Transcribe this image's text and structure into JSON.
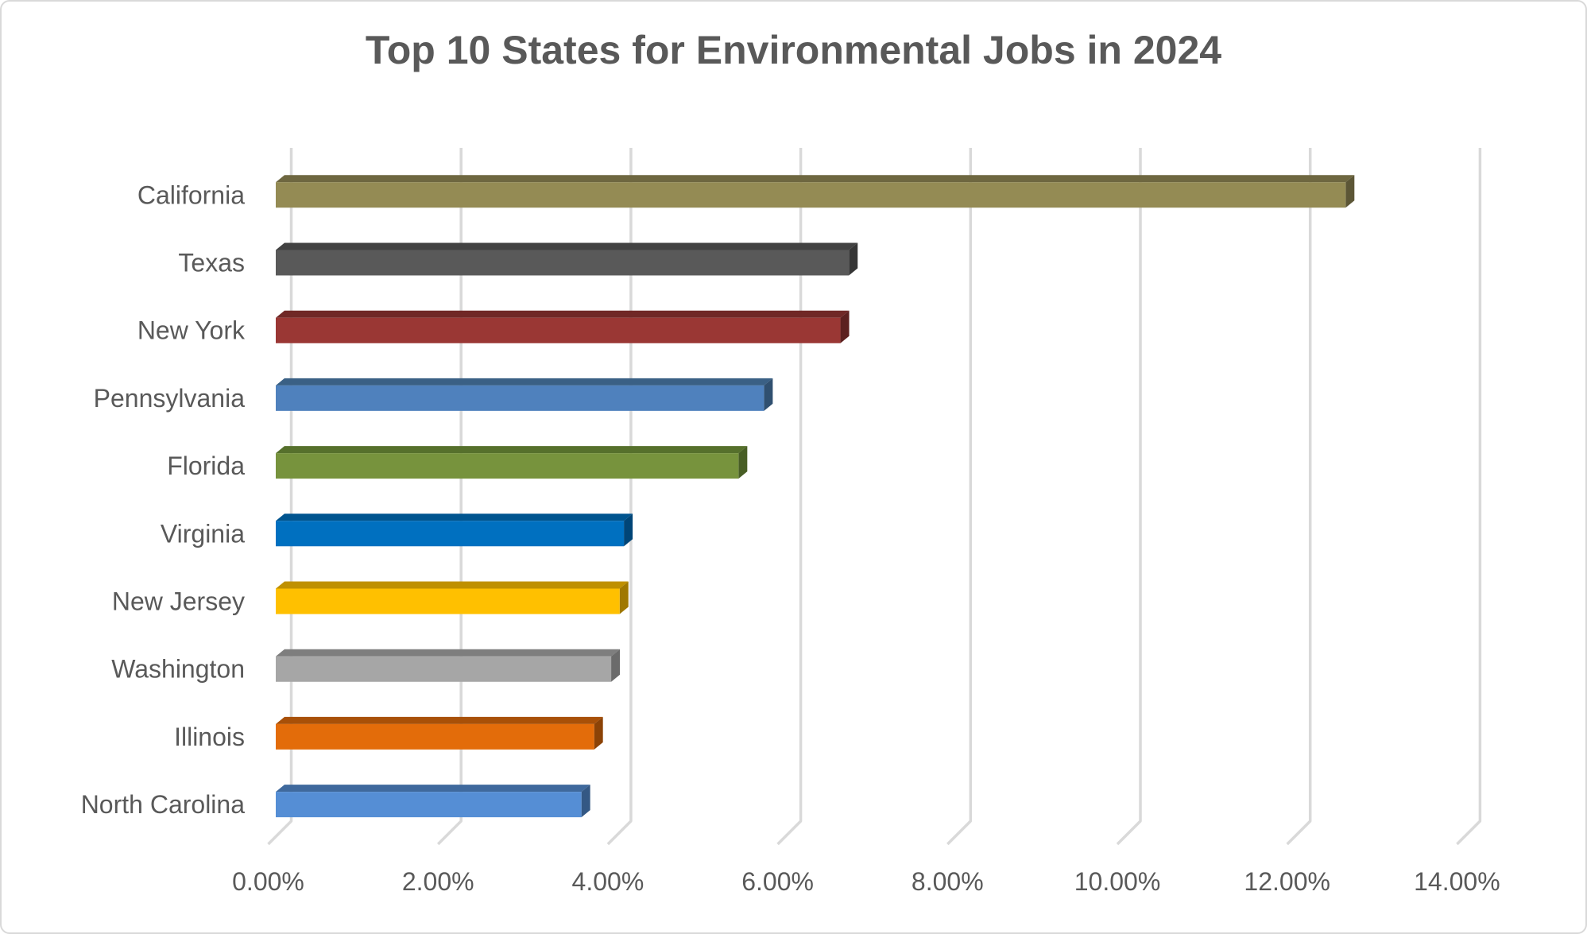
{
  "chart_data": {
    "type": "bar",
    "orientation": "horizontal",
    "style": "3d-box",
    "title": "Top 10 States for Environmental Jobs in 2024",
    "categories": [
      "California",
      "Texas",
      "New York",
      "Pennsylvania",
      "Florida",
      "Virginia",
      "New Jersey",
      "Washington",
      "Illinois",
      "North Carolina"
    ],
    "values": [
      12.6,
      6.75,
      6.65,
      5.75,
      5.45,
      4.1,
      4.05,
      3.95,
      3.75,
      3.6
    ],
    "value_unit": "percent",
    "xlabel": "",
    "ylabel": "",
    "xlim": [
      0,
      14
    ],
    "x_tick_step": 2,
    "x_tick_labels": [
      "0.00%",
      "2.00%",
      "4.00%",
      "6.00%",
      "8.00%",
      "10.00%",
      "12.00%",
      "14.00%"
    ],
    "grid": true,
    "legend": false,
    "bar_colors": [
      {
        "front": "#948B54",
        "top": "#6E6740",
        "side": "#5C5636"
      },
      {
        "front": "#595959",
        "top": "#424242",
        "side": "#363636"
      },
      {
        "front": "#9A3734",
        "top": "#702826",
        "side": "#5C201F"
      },
      {
        "front": "#4F81BD",
        "top": "#3A6085",
        "side": "#305070"
      },
      {
        "front": "#77933D",
        "top": "#56702C",
        "side": "#485E25"
      },
      {
        "front": "#0070C0",
        "top": "#00548F",
        "side": "#004577"
      },
      {
        "front": "#FFC000",
        "top": "#BF9000",
        "side": "#A07800"
      },
      {
        "front": "#A6A6A6",
        "top": "#7E7E7E",
        "side": "#6B6B6B"
      },
      {
        "front": "#E36C0A",
        "top": "#A85008",
        "side": "#8C4307"
      },
      {
        "front": "#558ED5",
        "top": "#3F699D",
        "side": "#345884"
      }
    ],
    "colors": {
      "gridline": "#D9D9D9",
      "text": "#595959",
      "title_text": "#595959",
      "background": "#FFFFFF",
      "frame_border": "#D9D9D9"
    }
  }
}
